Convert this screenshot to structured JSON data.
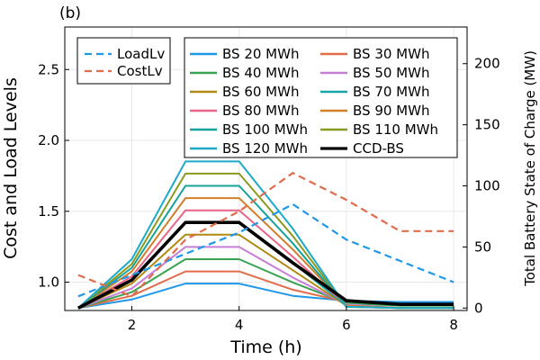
{
  "chart_data": {
    "type": "line",
    "panel_label": "(b)",
    "xlabel": "Time (h)",
    "ylabel": "Cost and Load Levels",
    "y2label": "Total Battery State of Charge (MW)",
    "x": [
      1,
      2,
      3,
      4,
      5,
      6,
      7,
      8
    ],
    "xlim": [
      0.75,
      8.25
    ],
    "xticks": [
      2,
      4,
      6,
      8
    ],
    "ylim": [
      0.8,
      2.8
    ],
    "yticks": [
      1.0,
      1.5,
      2.0,
      2.5
    ],
    "y2lim": [
      -2,
      230
    ],
    "y2ticks": [
      0,
      50,
      100,
      150,
      200
    ],
    "left_series": [
      {
        "name": "LoadLv",
        "color": "#1f98e8",
        "dash": "8,5",
        "width": 2.2,
        "values": [
          0.9,
          1.05,
          1.2,
          1.35,
          1.55,
          1.3,
          1.15,
          1.0
        ]
      },
      {
        "name": "CostLv",
        "color": "#e06c4a",
        "dash": "8,5",
        "width": 2.2,
        "values": [
          1.05,
          0.9,
          1.3,
          1.5,
          1.77,
          1.58,
          1.36,
          1.36
        ]
      }
    ],
    "battery_series": [
      {
        "name": "BS 20 MWh",
        "color": "#1f98e8",
        "values": [
          0,
          7,
          20,
          20,
          10,
          6,
          5,
          5
        ]
      },
      {
        "name": "BS 30 MWh",
        "color": "#e06c4a",
        "values": [
          0,
          10,
          30,
          30,
          15,
          5,
          3,
          3
        ]
      },
      {
        "name": "BS 40 MWh",
        "color": "#3aa352",
        "values": [
          0,
          13,
          40,
          40,
          21,
          4,
          2,
          2
        ]
      },
      {
        "name": "BS 50 MWh",
        "color": "#c77fd6",
        "values": [
          0,
          16,
          50,
          50,
          25,
          3,
          0,
          0
        ]
      },
      {
        "name": "BS 60 MWh",
        "color": "#b08a12",
        "values": [
          0,
          20,
          60,
          60,
          31,
          2,
          0,
          0
        ]
      },
      {
        "name": "BS 70 MWh",
        "color": "#17a6a6",
        "values": [
          0,
          23,
          70,
          70,
          37,
          2,
          0,
          0
        ]
      },
      {
        "name": "BS 80 MWh",
        "color": "#e8658a",
        "values": [
          0,
          26,
          80,
          80,
          42,
          2,
          0,
          0
        ]
      },
      {
        "name": "BS 90 MWh",
        "color": "#d27f2a",
        "values": [
          0,
          30,
          90,
          90,
          48,
          2,
          0,
          0
        ]
      },
      {
        "name": "BS 100 MWh",
        "color": "#14a39a",
        "values": [
          0,
          33,
          100,
          100,
          53,
          1,
          0,
          0
        ]
      },
      {
        "name": "BS 110 MWh",
        "color": "#8a9a1c",
        "values": [
          0,
          36,
          110,
          110,
          59,
          1,
          0,
          0
        ]
      },
      {
        "name": "BS 120 MWh",
        "color": "#1ea9c9",
        "values": [
          0,
          40,
          120,
          120,
          65,
          1,
          0,
          0
        ]
      },
      {
        "name": "CCD-BS",
        "color": "#000000",
        "width": 3.6,
        "values": [
          0,
          23,
          70,
          70,
          37,
          6,
          3,
          3
        ]
      }
    ],
    "legend_left": [
      "LoadLv",
      "CostLv"
    ],
    "legend_right_col1": [
      "BS 20 MWh",
      "BS 40 MWh",
      "BS 60 MWh",
      "BS 80 MWh",
      "BS 100 MWh",
      "BS 120 MWh"
    ],
    "legend_right_col2": [
      "BS 30 MWh",
      "BS 50 MWh",
      "BS 70 MWh",
      "BS 90 MWh",
      "BS 110 MWh",
      "CCD-BS"
    ]
  }
}
